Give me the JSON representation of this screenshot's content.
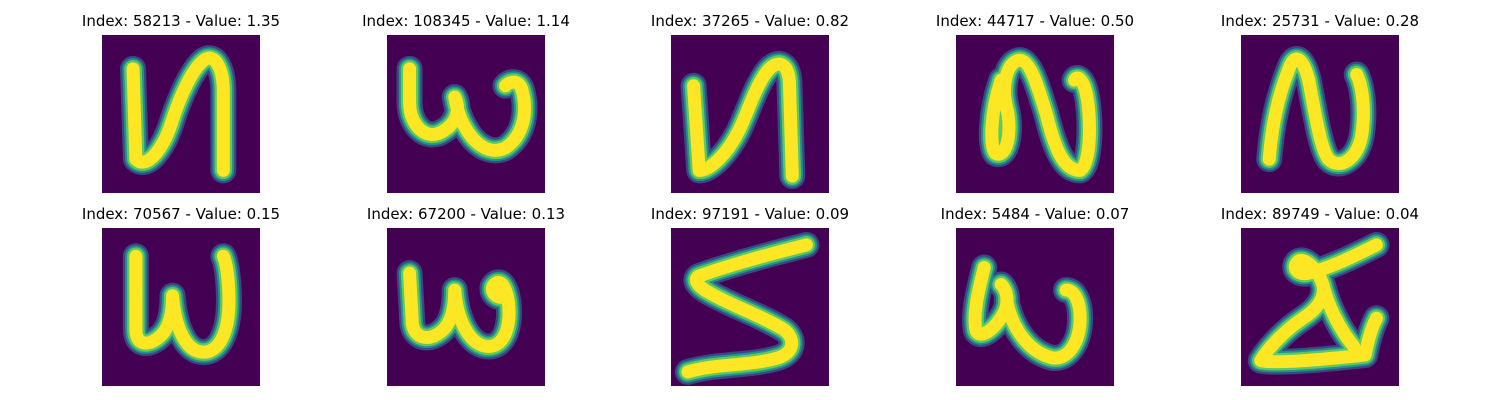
{
  "colors": {
    "background": "#440154",
    "stroke_core": "#fde725",
    "stroke_mid": "#5ec962",
    "stroke_edge": "#21918c",
    "stroke_outer": "#3b528b"
  },
  "panels": [
    {
      "title": "Index: 58213 - Value: 1.35",
      "glyph": "handwritten-n-shape"
    },
    {
      "title": "Index: 108345 - Value: 1.14",
      "glyph": "handwritten-w-shape"
    },
    {
      "title": "Index: 37265 - Value: 0.82",
      "glyph": "handwritten-n-shape"
    },
    {
      "title": "Index: 44717 - Value: 0.50",
      "glyph": "handwritten-n-loop-shape"
    },
    {
      "title": "Index: 25731 - Value: 0.28",
      "glyph": "handwritten-n-shape"
    },
    {
      "title": "Index: 70567 - Value: 0.15",
      "glyph": "handwritten-w-shape"
    },
    {
      "title": "Index: 67200 - Value: 0.13",
      "glyph": "handwritten-w-shape"
    },
    {
      "title": "Index: 97191 - Value: 0.09",
      "glyph": "handwritten-s-shape"
    },
    {
      "title": "Index: 5484 - Value: 0.07",
      "glyph": "handwritten-w-shape"
    },
    {
      "title": "Index: 89749 - Value: 0.04",
      "glyph": "handwritten-triangle-shape"
    }
  ]
}
